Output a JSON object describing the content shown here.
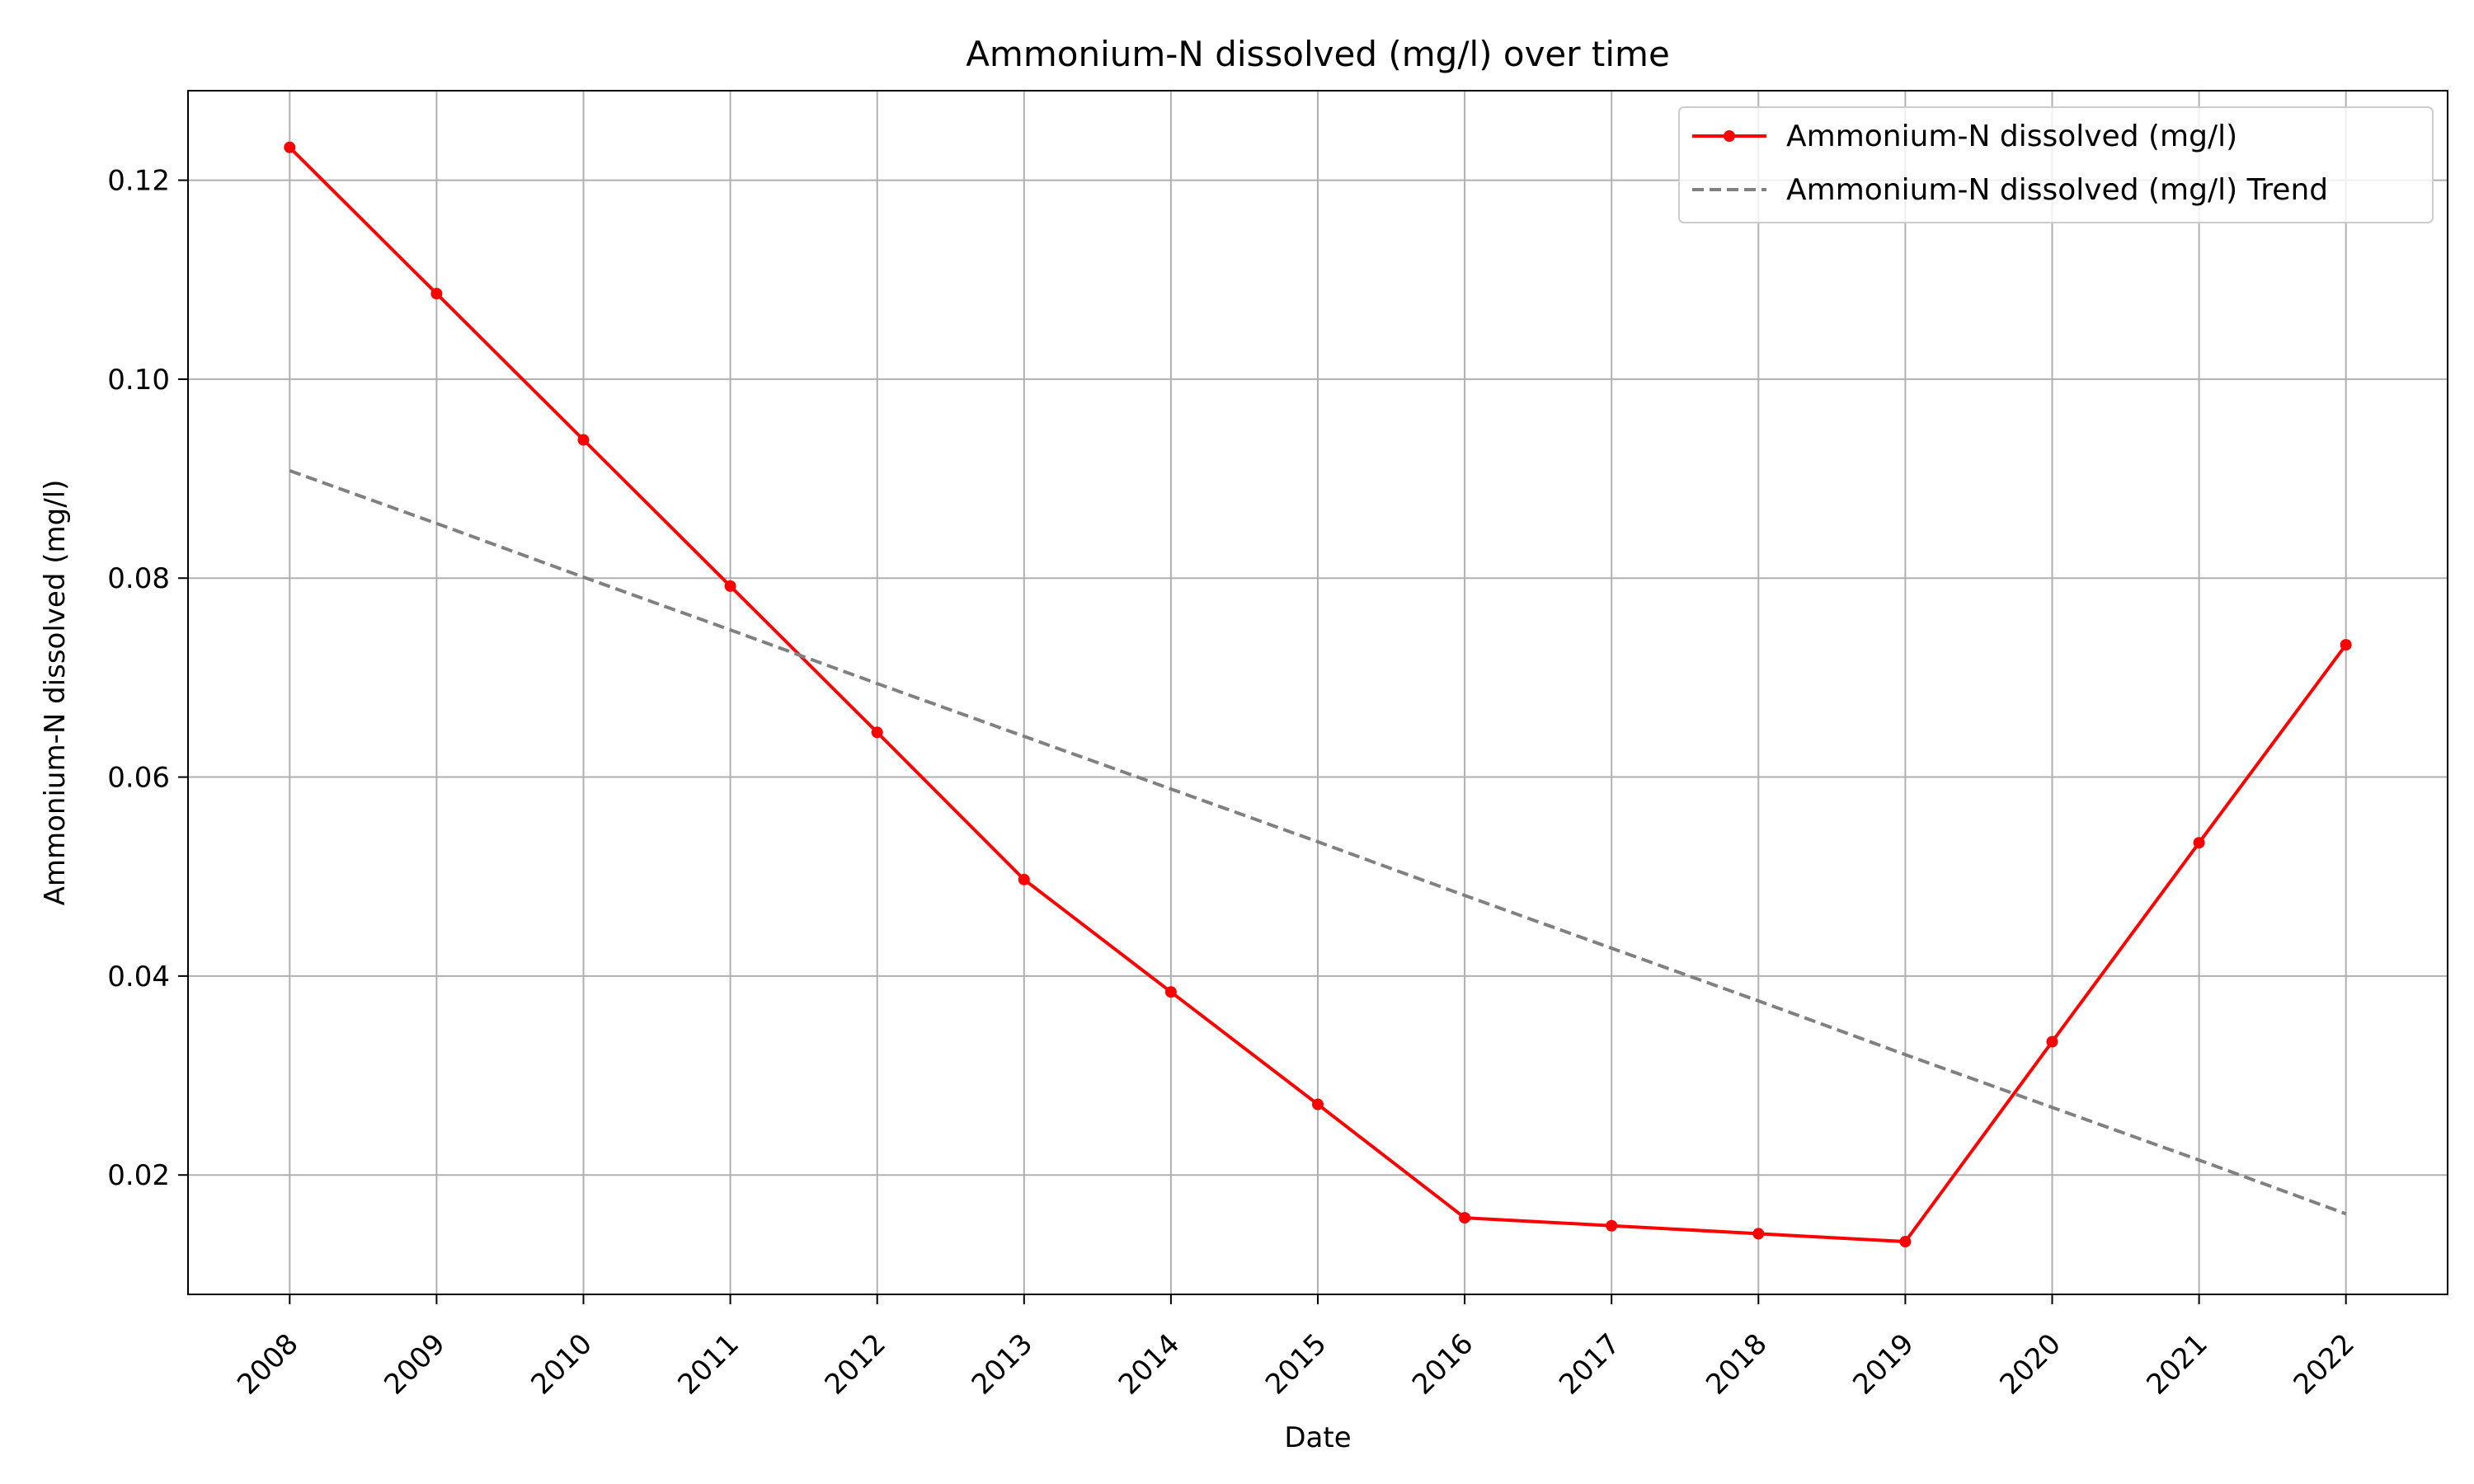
{
  "chart_data": {
    "type": "line",
    "title": "Ammonium-N dissolved (mg/l) over time",
    "xlabel": "Date",
    "ylabel": "Ammonium-N dissolved (mg/l)",
    "categories": [
      "2008",
      "2009",
      "2010",
      "2011",
      "2012",
      "2013",
      "2014",
      "2015",
      "2016",
      "2017",
      "2018",
      "2019",
      "2020",
      "2021",
      "2022"
    ],
    "ylim": [
      0.008,
      0.129
    ],
    "yticks": [
      0.02,
      0.04,
      0.06,
      0.08,
      0.1,
      0.12
    ],
    "ytick_labels": [
      "0.02",
      "0.04",
      "0.06",
      "0.08",
      "0.10",
      "0.12"
    ],
    "grid": true,
    "legend_position": "top-right",
    "series": [
      {
        "name": "Ammonium-N dissolved (mg/l)",
        "color": "#ff0000",
        "style": "solid-with-markers",
        "values": [
          0.1233,
          0.1086,
          0.0939,
          0.0792,
          0.0645,
          0.0497,
          0.0384,
          0.0271,
          0.0157,
          0.0149,
          0.0141,
          0.0133,
          0.0334,
          0.0534,
          0.0733
        ]
      },
      {
        "name": "Ammonium-N dissolved (mg/l) Trend",
        "color": "#808080",
        "style": "dashed",
        "values": [
          0.0908,
          0.0855,
          0.0801,
          0.0748,
          0.0694,
          0.0641,
          0.0588,
          0.0535,
          0.0481,
          0.0428,
          0.0375,
          0.0321,
          0.0268,
          0.0215,
          0.0161
        ]
      }
    ]
  }
}
